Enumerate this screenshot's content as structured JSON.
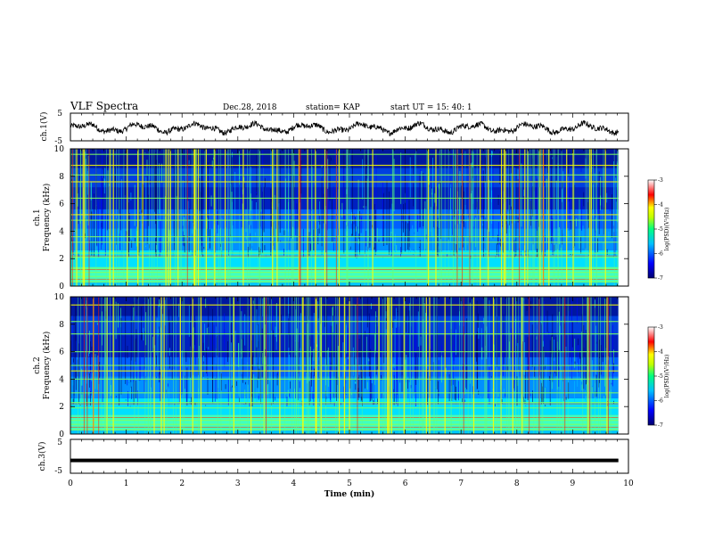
{
  "header": {
    "title": "VLF Spectra",
    "date": "Dec.28, 2018",
    "station": "station= KAP",
    "start": "start  UT =   15: 40: 1"
  },
  "chart_data": [
    {
      "type": "line",
      "name": "ch1-waveform",
      "ylabel": "ch.1(V)",
      "yticks": [
        "5",
        "-5"
      ],
      "ylim": [
        -5,
        5
      ],
      "xlim": [
        0,
        10
      ],
      "trace": "noisy waveform oscillating around -0.5 V with amplitude about 1.5 V"
    },
    {
      "type": "heatmap",
      "name": "ch1-spectrogram",
      "ylabel": "ch.1\nFrequency (kHz)",
      "ylabel_lines": [
        "ch.1",
        "Frequency (kHz)"
      ],
      "yticks": [
        "0",
        "2",
        "4",
        "6",
        "8",
        "10"
      ],
      "ylim": [
        0,
        10
      ],
      "xlim": [
        0,
        10
      ],
      "colorbar": {
        "label": "log(PSD)(V²/Hz)",
        "ticks": [
          "-3",
          "-4",
          "-5",
          "-6",
          "-7"
        ],
        "range": [
          -7,
          -3
        ]
      },
      "bands_khz": [
        0.3,
        0.7,
        1.0,
        1.3,
        2.1,
        2.4,
        3.2,
        3.6,
        4.8,
        5.2,
        6.4,
        7.6,
        8.1,
        8.8,
        9.6
      ]
    },
    {
      "type": "heatmap",
      "name": "ch2-spectrogram",
      "ylabel": "ch.2\nFrequency (kHz)",
      "ylabel_lines": [
        "ch.2",
        "Frequency (kHz)"
      ],
      "yticks": [
        "0",
        "2",
        "4",
        "6",
        "8",
        "10"
      ],
      "ylim": [
        0,
        10
      ],
      "xlim": [
        0,
        10
      ],
      "colorbar": {
        "label": "log(PSD)(V²/Hz)",
        "ticks": [
          "-3",
          "-4",
          "-5",
          "-6",
          "-7"
        ],
        "range": [
          -7,
          -3
        ]
      },
      "bands_khz": [
        0.3,
        0.7,
        1.0,
        1.9,
        2.3,
        3.0,
        4.0,
        4.6,
        5.0,
        6.0,
        7.3,
        8.2,
        9.4
      ]
    },
    {
      "type": "line",
      "name": "ch3-waveform",
      "ylabel": "ch.3(V)",
      "yticks": [
        "5",
        "-5"
      ],
      "ylim": [
        -5,
        5
      ],
      "xlim": [
        0,
        10
      ],
      "constant_value": -1.2
    }
  ],
  "xaxis": {
    "label": "Time  (min)",
    "ticks": [
      "0",
      "1",
      "2",
      "3",
      "4",
      "5",
      "6",
      "7",
      "8",
      "9",
      "10"
    ],
    "range": [
      0,
      10
    ]
  },
  "colors": {
    "scale": [
      "#000080",
      "#0000ff",
      "#00bfff",
      "#00ff80",
      "#c0ff00",
      "#ffff00",
      "#ff0000",
      "#ffffff"
    ]
  }
}
